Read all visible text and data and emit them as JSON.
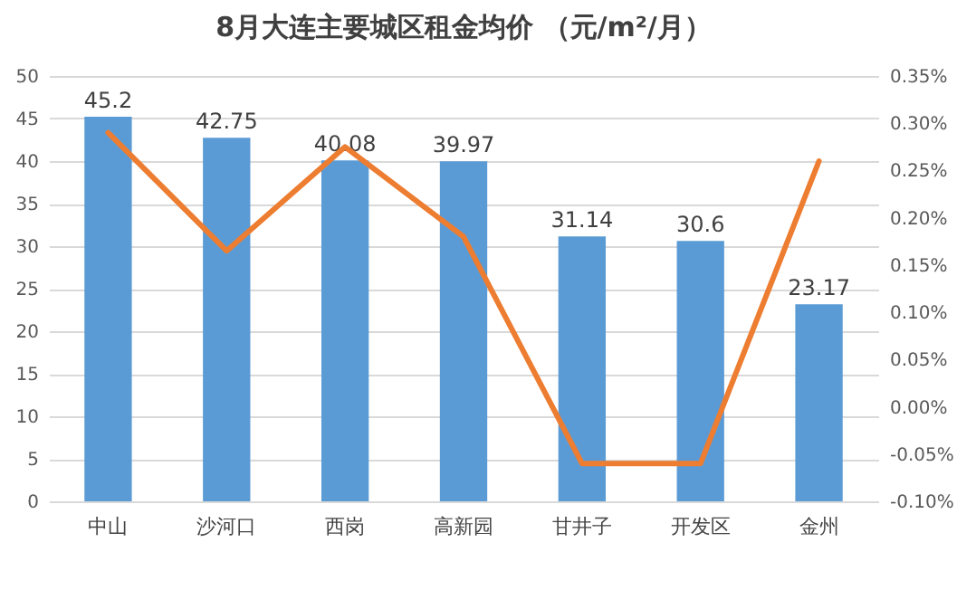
{
  "chart_data": {
    "type": "bar",
    "title": "8月大连主要城区租金均价 （元/m²/月）",
    "categories": [
      "中山",
      "沙河口",
      "西岗",
      "高新园",
      "甘井子",
      "开发区",
      "金州"
    ],
    "series": [
      {
        "color": "#5b9bd5",
        "values": [
          45.2,
          42.75,
          40.08,
          39.97,
          31.14,
          30.6,
          23.17
        ],
        "value_labels": [
          "45.2",
          "42.75",
          "40.08",
          "39.97",
          "31.14",
          "30.6",
          "23.17"
        ]
      },
      {
        "type": "line",
        "axis": "y2",
        "color": "#ed7d31",
        "values": [
          0.29,
          0.165,
          0.275,
          0.18,
          -0.06,
          -0.06,
          0.26
        ]
      }
    ],
    "ylim": [
      0,
      50
    ],
    "yticks": [
      0,
      5,
      10,
      15,
      20,
      25,
      30,
      35,
      40,
      45,
      50
    ],
    "y2lim": [
      -0.1,
      0.35
    ],
    "y2ticks": [
      {
        "value": -0.1,
        "label": "-0.10%"
      },
      {
        "value": -0.05,
        "label": "-0.05%"
      },
      {
        "value": 0,
        "label": "0.00%"
      },
      {
        "value": 0.05,
        "label": "0.05%"
      },
      {
        "value": 0.1,
        "label": "0.10%"
      },
      {
        "value": 0.15,
        "label": "0.15%"
      },
      {
        "value": 0.2,
        "label": "0.20%"
      },
      {
        "value": 0.25,
        "label": "0.25%"
      },
      {
        "value": 0.3,
        "label": "0.30%"
      },
      {
        "value": 0.35,
        "label": "0.35%"
      }
    ],
    "grid": "y",
    "marker": "none",
    "line_style": "solid"
  }
}
